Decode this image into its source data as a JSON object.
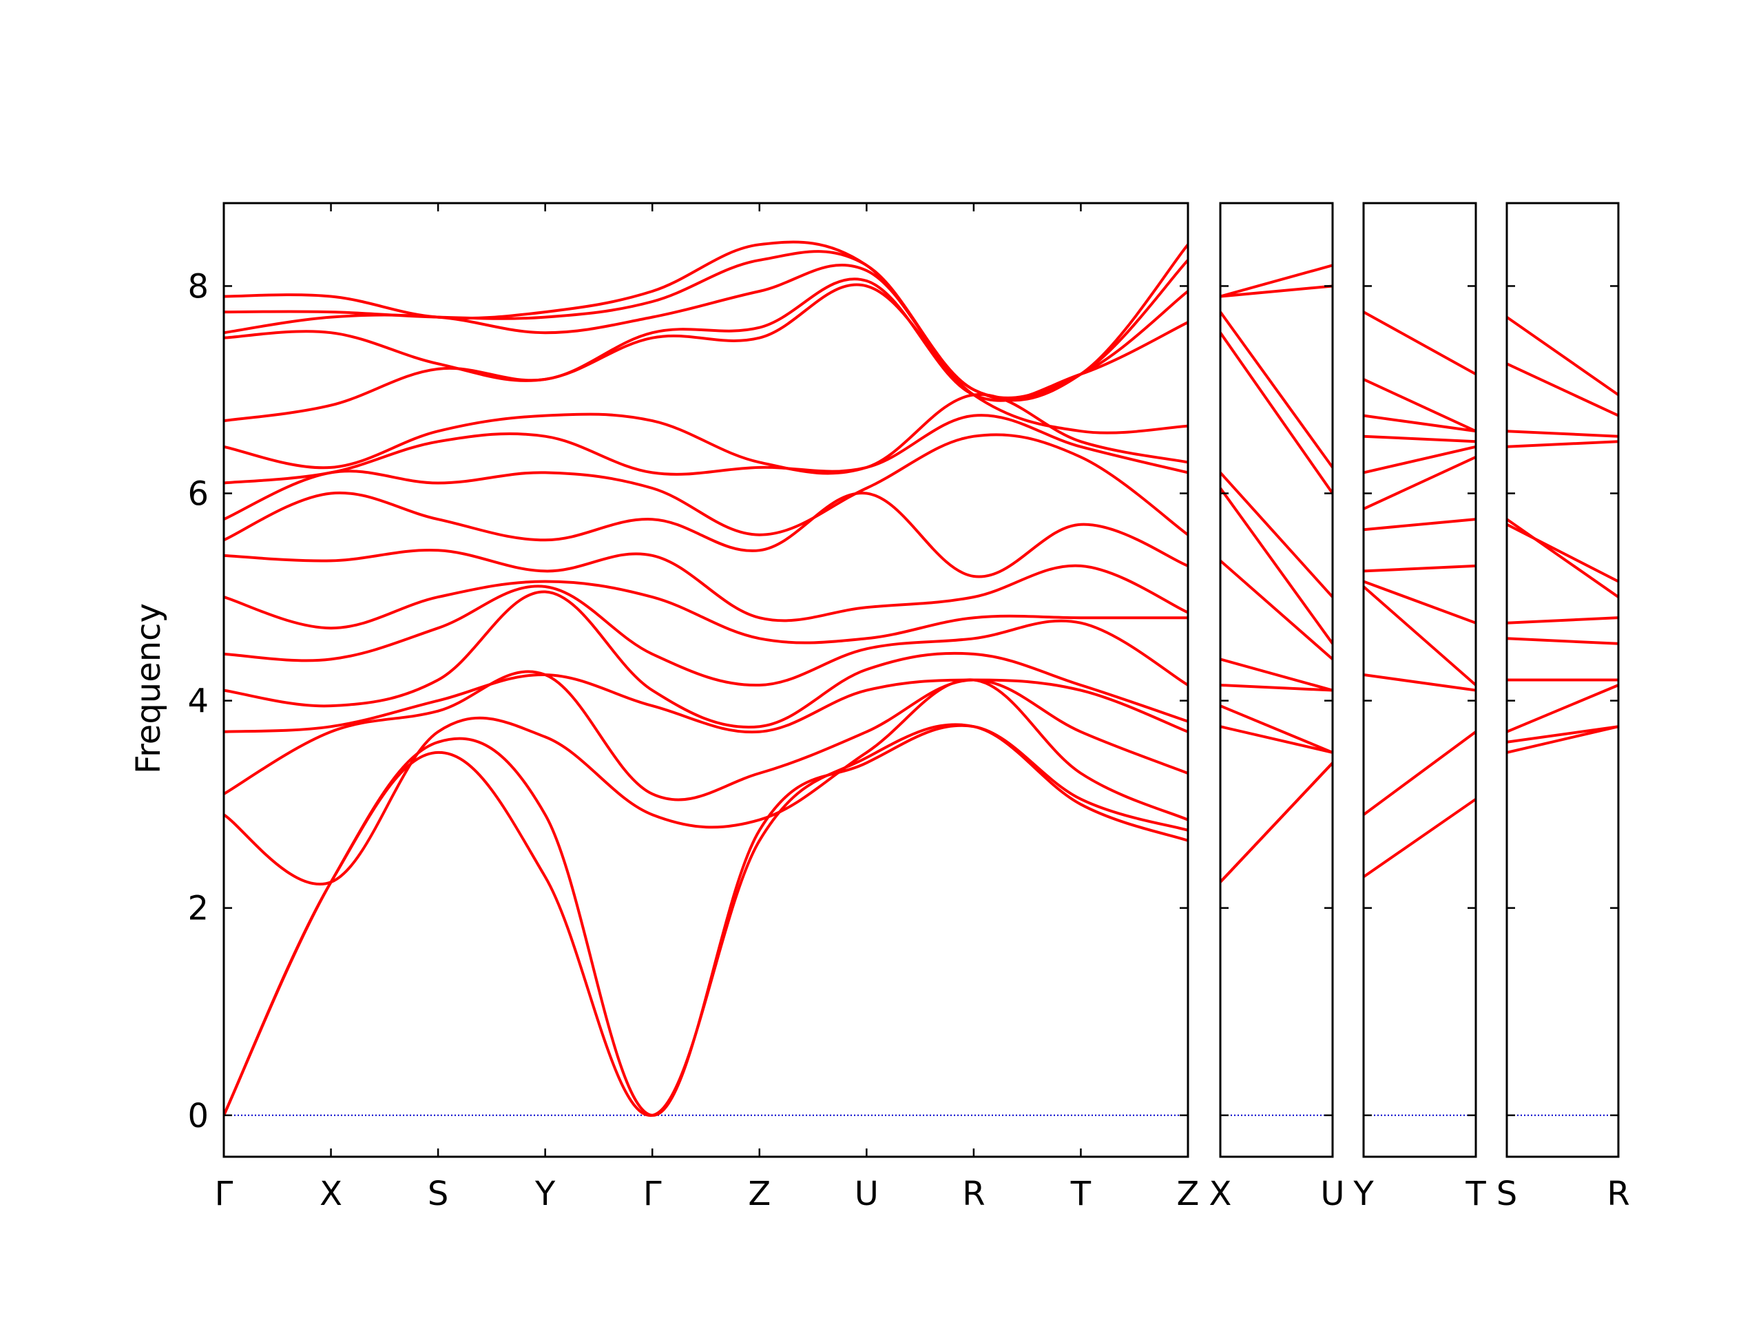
{
  "chart_data": {
    "type": "line",
    "title": "",
    "xlabel": "",
    "ylabel": "Frequency",
    "ylim": [
      -0.4,
      8.8
    ],
    "yticks": [
      0,
      2,
      4,
      6,
      8
    ],
    "grid": false,
    "colors": {
      "band": "#ff0000",
      "zero_line": "#0000cc",
      "axis": "#000000"
    },
    "panels": [
      {
        "labels": [
          "Γ",
          "X",
          "S",
          "Y",
          "Γ",
          "Z",
          "U",
          "R",
          "T",
          "Z"
        ],
        "bands": [
          [
            0,
            2.25,
            3.5,
            2.3,
            0,
            2.65,
            3.45,
            3.75,
            3.0,
            2.65
          ],
          [
            0,
            2.25,
            3.6,
            2.9,
            0,
            2.75,
            3.4,
            3.75,
            3.05,
            2.75
          ],
          [
            2.9,
            2.25,
            3.7,
            3.65,
            2.9,
            2.85,
            3.5,
            4.2,
            3.3,
            2.85
          ],
          [
            3.1,
            3.7,
            3.9,
            4.25,
            3.1,
            3.3,
            3.7,
            4.2,
            3.7,
            3.3
          ],
          [
            3.7,
            3.75,
            4.0,
            4.25,
            3.95,
            3.7,
            4.1,
            4.2,
            4.1,
            3.7
          ],
          [
            4.1,
            3.95,
            4.2,
            5.05,
            4.1,
            3.75,
            4.3,
            4.45,
            4.15,
            3.8
          ],
          [
            4.45,
            4.4,
            4.7,
            5.1,
            4.45,
            4.15,
            4.5,
            4.6,
            4.75,
            4.15
          ],
          [
            5.0,
            4.7,
            5.0,
            5.15,
            5.0,
            4.6,
            4.6,
            4.8,
            4.8,
            4.8
          ],
          [
            5.4,
            5.35,
            5.45,
            5.25,
            5.4,
            4.8,
            4.9,
            5.0,
            5.3,
            4.85
          ],
          [
            5.55,
            6.0,
            5.75,
            5.55,
            5.75,
            5.45,
            6.0,
            5.2,
            5.7,
            5.3
          ],
          [
            5.75,
            6.2,
            6.1,
            6.2,
            6.05,
            5.6,
            6.05,
            6.55,
            6.35,
            5.6
          ],
          [
            6.1,
            6.2,
            6.5,
            6.55,
            6.2,
            6.25,
            6.25,
            6.75,
            6.45,
            6.2
          ],
          [
            6.45,
            6.25,
            6.6,
            6.75,
            6.7,
            6.3,
            6.25,
            6.95,
            6.5,
            6.3
          ],
          [
            6.7,
            6.85,
            7.2,
            7.1,
            7.5,
            7.5,
            8.0,
            6.95,
            6.6,
            6.65
          ],
          [
            7.5,
            7.55,
            7.25,
            7.1,
            7.55,
            7.6,
            8.05,
            6.95,
            7.15,
            7.65
          ],
          [
            7.55,
            7.7,
            7.7,
            7.55,
            7.7,
            7.95,
            8.15,
            7.0,
            7.15,
            7.95
          ],
          [
            7.75,
            7.75,
            7.7,
            7.7,
            7.85,
            8.25,
            8.2,
            7.0,
            7.15,
            8.25
          ],
          [
            7.9,
            7.9,
            7.7,
            7.75,
            7.95,
            8.4,
            8.2,
            7.0,
            7.15,
            8.4
          ]
        ]
      },
      {
        "labels": [
          "X",
          "U"
        ],
        "bands": [
          [
            2.25,
            3.4
          ],
          [
            2.25,
            3.4
          ],
          [
            3.75,
            3.5
          ],
          [
            3.95,
            3.5
          ],
          [
            4.15,
            4.1
          ],
          [
            4.4,
            4.1
          ],
          [
            5.35,
            4.4
          ],
          [
            6.05,
            4.55
          ],
          [
            6.2,
            5.0
          ],
          [
            7.55,
            6.0
          ],
          [
            7.75,
            6.25
          ],
          [
            7.9,
            8.0
          ],
          [
            7.9,
            8.2
          ]
        ]
      },
      {
        "labels": [
          "Y",
          "T"
        ],
        "bands": [
          [
            2.3,
            3.05
          ],
          [
            2.9,
            3.7
          ],
          [
            4.25,
            4.1
          ],
          [
            5.1,
            4.15
          ],
          [
            5.15,
            4.75
          ],
          [
            5.25,
            5.3
          ],
          [
            5.65,
            5.75
          ],
          [
            5.85,
            6.35
          ],
          [
            6.2,
            6.45
          ],
          [
            6.55,
            6.5
          ],
          [
            6.75,
            6.6
          ],
          [
            7.1,
            6.6
          ],
          [
            7.75,
            7.15
          ]
        ]
      },
      {
        "labels": [
          "S",
          "R"
        ],
        "bands": [
          [
            3.5,
            3.75
          ],
          [
            3.6,
            3.75
          ],
          [
            3.7,
            4.15
          ],
          [
            4.2,
            4.2
          ],
          [
            4.6,
            4.55
          ],
          [
            4.75,
            4.8
          ],
          [
            5.75,
            5.0
          ],
          [
            5.7,
            5.15
          ],
          [
            6.45,
            6.5
          ],
          [
            6.6,
            6.55
          ],
          [
            7.25,
            6.75
          ],
          [
            7.7,
            6.95
          ]
        ]
      }
    ]
  }
}
